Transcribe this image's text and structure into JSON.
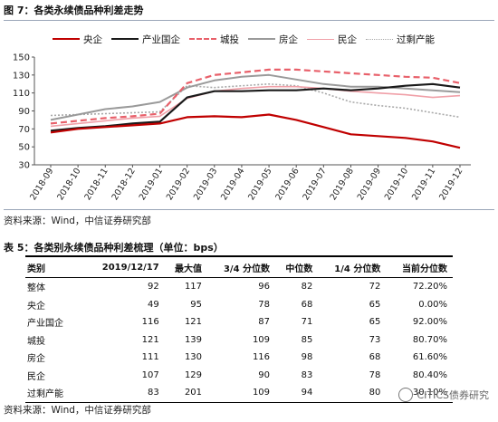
{
  "figure": {
    "title": "图 7：各类永续债品种利差走势",
    "source": "资料来源：Wind，中信证券研究部"
  },
  "colors": {
    "central_soe": "#c00000",
    "industrial_soe": "#1a1a1a",
    "lgfv": "#e8606a",
    "real_estate": "#9a9a9a",
    "private": "#f0a0a8",
    "overcapacity": "#a8a8a8"
  },
  "chart_data": {
    "type": "line",
    "title": "图 7：各类永续债品种利差走势",
    "xlabel": "",
    "ylabel": "",
    "ylim": [
      30,
      150
    ],
    "yticks": [
      30,
      50,
      70,
      90,
      110,
      130,
      150
    ],
    "x": [
      "2018-09",
      "2018-10",
      "2018-11",
      "2018-12",
      "2019-01",
      "2019-02",
      "2019-03",
      "2019-04",
      "2019-05",
      "2019-06",
      "2019-07",
      "2019-08",
      "2019-09",
      "2019-10",
      "2019-11",
      "2019-12"
    ],
    "grid": false,
    "legend": "top",
    "series": [
      {
        "name": "央企",
        "color_key": "central_soe",
        "dash": "solid",
        "width": 2.2,
        "values": [
          66,
          70,
          72,
          74,
          76,
          83,
          84,
          83,
          86,
          80,
          72,
          64,
          62,
          60,
          56,
          49
        ]
      },
      {
        "name": "产业国企",
        "color_key": "industrial_soe",
        "dash": "solid",
        "width": 2.2,
        "values": [
          68,
          71,
          73,
          76,
          78,
          105,
          112,
          112,
          113,
          113,
          115,
          113,
          115,
          118,
          120,
          116
        ]
      },
      {
        "name": "城投",
        "color_key": "lgfv",
        "dash": "dash",
        "width": 2.2,
        "values": [
          76,
          79,
          82,
          84,
          87,
          121,
          130,
          133,
          136,
          136,
          134,
          132,
          130,
          128,
          127,
          121
        ]
      },
      {
        "name": "房企",
        "color_key": "real_estate",
        "dash": "solid",
        "width": 2.0,
        "values": [
          80,
          86,
          92,
          95,
          100,
          116,
          124,
          128,
          130,
          125,
          120,
          117,
          117,
          115,
          113,
          111
        ]
      },
      {
        "name": "民企",
        "color_key": "private",
        "dash": "solid",
        "width": 1.6,
        "values": [
          73,
          76,
          79,
          82,
          84,
          104,
          112,
          115,
          117,
          117,
          115,
          112,
          110,
          108,
          105,
          107
        ]
      },
      {
        "name": "过剩产能",
        "color_key": "overcapacity",
        "dash": "dot",
        "width": 1.6,
        "values": [
          85,
          86,
          87,
          88,
          89,
          118,
          116,
          118,
          120,
          118,
          110,
          100,
          96,
          93,
          88,
          83
        ]
      }
    ]
  },
  "table": {
    "title": "表 5：各类别永续债品种利差梳理（单位：bps）",
    "headers": [
      "类别",
      "2019/12/17",
      "最大值",
      "3/4 分位数",
      "中位数",
      "1/4 分位数",
      "当前分位数"
    ],
    "rows": [
      [
        "整体",
        "92",
        "117",
        "96",
        "82",
        "72",
        "72.20%"
      ],
      [
        "央企",
        "49",
        "95",
        "78",
        "68",
        "65",
        "0.00%"
      ],
      [
        "产业国企",
        "116",
        "121",
        "87",
        "71",
        "65",
        "92.00%"
      ],
      [
        "城投",
        "121",
        "139",
        "109",
        "85",
        "73",
        "80.70%"
      ],
      [
        "房企",
        "111",
        "130",
        "116",
        "98",
        "68",
        "61.60%"
      ],
      [
        "民企",
        "107",
        "129",
        "90",
        "83",
        "78",
        "80.40%"
      ],
      [
        "过剩产能",
        "83",
        "201",
        "109",
        "94",
        "80",
        "30.10%"
      ]
    ],
    "source": "资料来源：Wind，中信证券研究部"
  },
  "watermark": {
    "text": "CITICS债券研究"
  }
}
